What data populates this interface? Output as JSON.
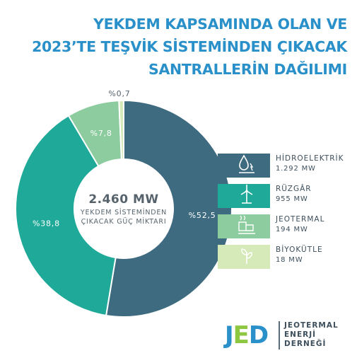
{
  "title_lines": [
    "YEKDEM KAPSAMINDA OLAN VE",
    "2023’TE TEŞVİK SİSTEMİNDEN ÇIKACAK",
    "SANTRALLERİN DAĞILIMI"
  ],
  "center": {
    "total": "2.460 MW",
    "caption_line1": "YEKDEM SİSTEMİNDEN",
    "caption_line2": "ÇIKACAK GÜÇ MİKTARI"
  },
  "chart_data": {
    "type": "pie",
    "donut": true,
    "categories": [
      "HİDROELEKTRİK",
      "RÜZGÂR",
      "JEOTERMAL",
      "BİYOKÜTLE"
    ],
    "values": [
      52.5,
      38.8,
      7.8,
      0.7
    ],
    "value_labels": [
      "%52,5",
      "%38,8",
      "%7,8",
      "%0,7"
    ],
    "capacity_labels": [
      "1.292 MW",
      "955 MW",
      "194 MW",
      "18 MW"
    ],
    "colors": [
      "#3e6b80",
      "#1fa999",
      "#8ccc9e",
      "#d6e9b8"
    ],
    "legend_placement": "right"
  },
  "legend_icons": [
    "hydro-icon",
    "wind-icon",
    "geothermal-icon",
    "biomass-icon"
  ],
  "logo": {
    "word": "JED",
    "name_line1": "JEOTERMAL",
    "name_line2": "ENERJİ",
    "name_line3": "DERNEĞİ",
    "colors": [
      "#2a90c9",
      "#8dc63f"
    ]
  }
}
